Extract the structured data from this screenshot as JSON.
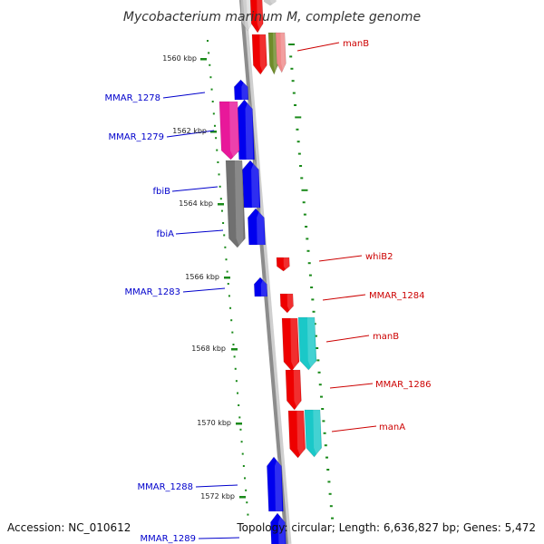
{
  "title": "Mycobacterium marinum M, complete genome",
  "footer": {
    "accession": "Accession: NC_010612",
    "topology": "Topology: circular; Length: 6,636,827 bp; Genes: 5,472"
  },
  "colors": {
    "backbone": "#8c8c8c",
    "tick": "#1a8a1a",
    "left_label": "#0000cc",
    "right_label": "#cc0000",
    "blue": "#0000ee",
    "red": "#ee0000",
    "magenta": "#e8189a",
    "gray": "#707070",
    "cyan": "#1ac8c8",
    "olive": "#6f8c2a",
    "pink": "#f08a8a"
  },
  "kbp_labels": [
    "1560 kbp",
    "1562 kbp",
    "1564 kbp",
    "1566 kbp",
    "1568 kbp",
    "1570 kbp",
    "1572 kbp"
  ],
  "left_genes": [
    "MMAR_1278",
    "MMAR_1279",
    "fbiB",
    "fbiA",
    "MMAR_1283",
    "MMAR_1288",
    "MMAR_1289"
  ],
  "right_genes": [
    "manB",
    "whiB2",
    "MMAR_1284",
    "manB",
    "MMAR_1286",
    "manA"
  ]
}
